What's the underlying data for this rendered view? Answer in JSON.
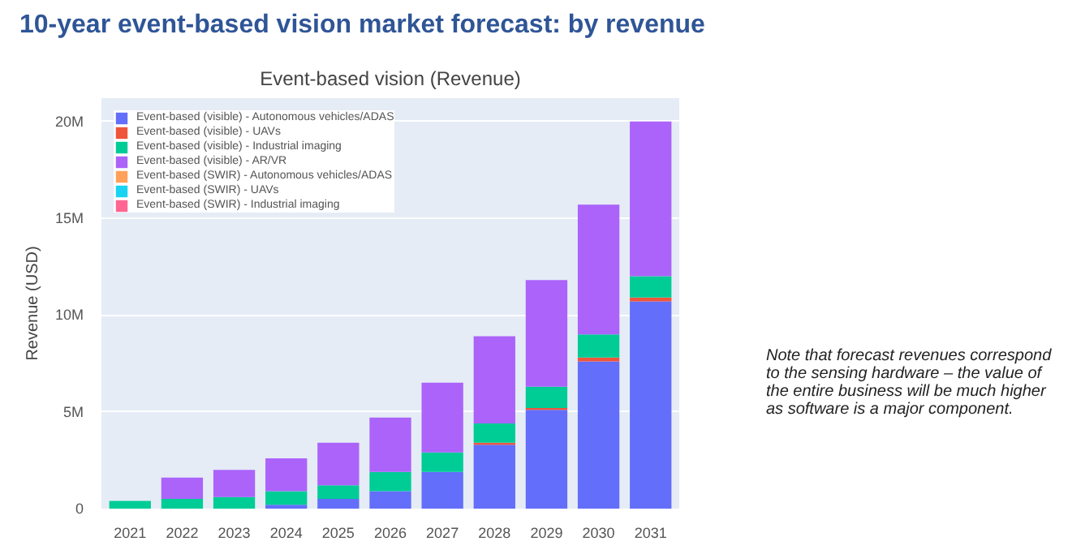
{
  "chart_data": {
    "type": "bar",
    "stacked": true,
    "title": "10-year event-based vision market forecast: by revenue",
    "subtitle": "Event-based vision (Revenue)",
    "ylabel": "Revenue (USD)",
    "annotations": [
      "Note that forecast revenues correspond to the sensing hardware – the value of the entire business will be much higher as software is a major component."
    ],
    "categories": [
      "2021",
      "2022",
      "2023",
      "2024",
      "2025",
      "2026",
      "2027",
      "2028",
      "2029",
      "2030",
      "2031"
    ],
    "series": [
      {
        "name": "Event-based (visible) - Autonomous vehicles/ADAS",
        "color": "#636efa",
        "values": [
          0,
          0,
          0,
          0.2,
          0.5,
          0.9,
          1.9,
          3.3,
          5.1,
          7.6,
          10.7
        ]
      },
      {
        "name": "Event-based (visible) - UAVs",
        "color": "#ef553b",
        "values": [
          0,
          0,
          0,
          0,
          0,
          0,
          0,
          0.1,
          0.1,
          0.2,
          0.2
        ]
      },
      {
        "name": "Event-based (visible) - Industrial imaging",
        "color": "#00cc96",
        "values": [
          0.4,
          0.5,
          0.6,
          0.7,
          0.7,
          1.0,
          1.0,
          1.0,
          1.1,
          1.2,
          1.1
        ]
      },
      {
        "name": "Event-based (visible) - AR/VR",
        "color": "#ab63fa",
        "values": [
          0,
          1.1,
          1.4,
          1.7,
          2.2,
          2.8,
          3.6,
          4.5,
          5.5,
          6.7,
          8.0
        ]
      },
      {
        "name": "Event-based (SWIR) - Autonomous vehicles/ADAS",
        "color": "#ffa15a",
        "values": [
          0,
          0,
          0,
          0,
          0,
          0,
          0,
          0,
          0,
          0,
          0
        ]
      },
      {
        "name": "Event-based (SWIR) - UAVs",
        "color": "#19d3f3",
        "values": [
          0,
          0,
          0,
          0,
          0,
          0,
          0,
          0,
          0,
          0,
          0
        ]
      },
      {
        "name": "Event-based (SWIR) - Industrial imaging",
        "color": "#ff6692",
        "values": [
          0,
          0,
          0,
          0,
          0,
          0,
          0,
          0,
          0,
          0,
          0
        ]
      }
    ],
    "ylim": [
      0,
      21.2
    ],
    "yticks": [
      {
        "value": 0,
        "label": "0"
      },
      {
        "value": 5,
        "label": "5M"
      },
      {
        "value": 10,
        "label": "10M"
      },
      {
        "value": 15,
        "label": "15M"
      },
      {
        "value": 20,
        "label": "20M"
      }
    ],
    "grid": "y",
    "legend": "top left"
  }
}
